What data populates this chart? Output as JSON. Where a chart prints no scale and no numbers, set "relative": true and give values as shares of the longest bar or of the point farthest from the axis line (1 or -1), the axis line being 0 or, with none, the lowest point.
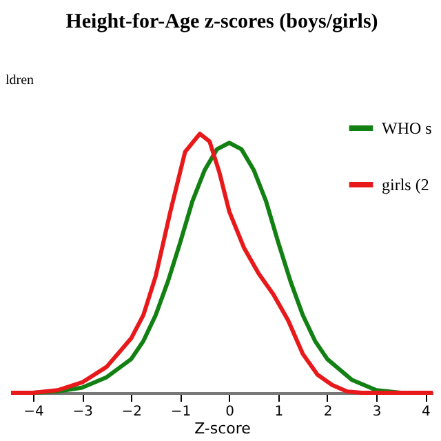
{
  "chart_data": {
    "type": "line",
    "title": "Height-for-Age z-scores (boys/girls)",
    "xlabel": "Z-score",
    "relative": true,
    "annotations": [
      "ldren"
    ],
    "xlim": [
      -4.45,
      4.15
    ],
    "xticks": [
      -4,
      -3,
      -2,
      -1,
      0,
      1,
      2,
      3,
      4
    ],
    "grid": false,
    "legend": "top right",
    "marker": "none",
    "line_style": "solid",
    "series": [
      {
        "name": "WHO s",
        "color": "#138013",
        "x": [
          -4.45,
          -4,
          -3.5,
          -3,
          -2.5,
          -2,
          -1.75,
          -1.5,
          -1.25,
          -1,
          -0.75,
          -0.5,
          -0.25,
          0,
          0.25,
          0.5,
          0.75,
          1,
          1.25,
          1.5,
          1.75,
          2,
          2.5,
          3,
          3.5,
          4,
          4.15
        ],
        "values": [
          0,
          0,
          0.005,
          0.02,
          0.06,
          0.13,
          0.2,
          0.3,
          0.43,
          0.58,
          0.74,
          0.86,
          0.94,
          0.965,
          0.94,
          0.86,
          0.74,
          0.58,
          0.43,
          0.3,
          0.2,
          0.13,
          0.05,
          0.01,
          0,
          0,
          0
        ]
      },
      {
        "name": "girls (2",
        "color": "#e8191b",
        "x": [
          -4.45,
          -4,
          -3.5,
          -3,
          -2.5,
          -2,
          -1.75,
          -1.5,
          -1.2,
          -0.9,
          -0.6,
          -0.4,
          -0.2,
          0,
          0.3,
          0.6,
          0.9,
          1.2,
          1.5,
          1.8,
          2.1,
          2.4,
          2.7,
          3,
          3.5,
          4,
          4.15
        ],
        "values": [
          0,
          0,
          0.01,
          0.04,
          0.1,
          0.21,
          0.3,
          0.45,
          0.7,
          0.93,
          1,
          0.97,
          0.85,
          0.7,
          0.56,
          0.46,
          0.38,
          0.28,
          0.15,
          0.07,
          0.03,
          0.005,
          0,
          0,
          0,
          0,
          0
        ]
      }
    ]
  }
}
